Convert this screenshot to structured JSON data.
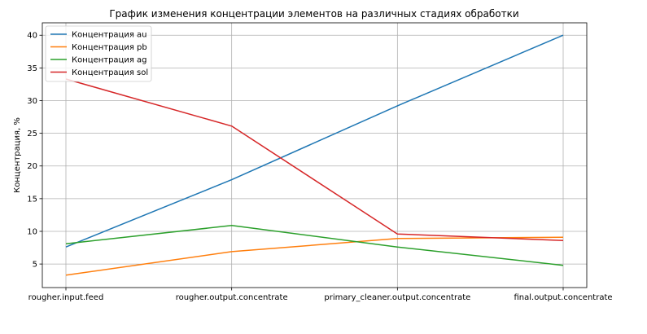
{
  "chart_data": {
    "type": "line",
    "title": "График изменения концентрации элементов на различных стадиях обработки",
    "xlabel": "",
    "ylabel": "Концентрация, %",
    "categories": [
      "rougher.input.feed",
      "rougher.output.concentrate",
      "primary_cleaner.output.concentrate",
      "final.output.concentrate"
    ],
    "ylim": [
      1.4,
      41.9
    ],
    "yticks": [
      5,
      10,
      15,
      20,
      25,
      30,
      35,
      40
    ],
    "grid": true,
    "legend_position": "top-left",
    "series": [
      {
        "name": "Концентрация au",
        "color": "#1f77b4",
        "values": [
          7.6,
          17.9,
          29.2,
          40.0
        ]
      },
      {
        "name": "Концентрация pb",
        "color": "#ff7f0e",
        "values": [
          3.3,
          6.9,
          8.9,
          9.1
        ]
      },
      {
        "name": "Концентрация ag",
        "color": "#2ca02c",
        "values": [
          8.1,
          10.9,
          7.6,
          4.8
        ]
      },
      {
        "name": "Концентрация sol",
        "color": "#d62728",
        "values": [
          33.3,
          26.1,
          9.6,
          8.6
        ]
      }
    ]
  }
}
